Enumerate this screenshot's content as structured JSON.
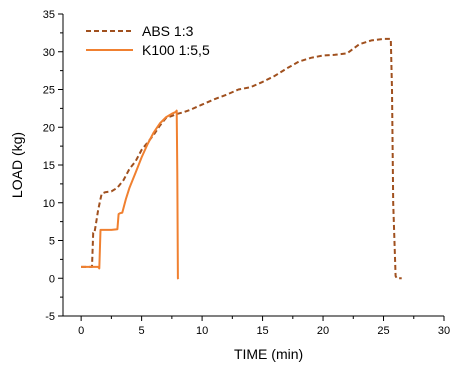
{
  "chart_data": {
    "type": "line",
    "title": "",
    "xlabel": "TIME (min)",
    "ylabel": "LOAD (kg)",
    "xlim": [
      -1.5,
      30
    ],
    "ylim": [
      -5,
      35
    ],
    "xticks": [
      0,
      5,
      10,
      15,
      20,
      25,
      30
    ],
    "yticks": [
      -5,
      0,
      5,
      10,
      15,
      20,
      25,
      30,
      35
    ],
    "grid": false,
    "legend_position": "top-left",
    "series": [
      {
        "name": "ABS 1:3",
        "color": "#a0501e",
        "style": "dashed",
        "x": [
          0,
          0.9,
          1.0,
          1.1,
          1.2,
          1.4,
          1.6,
          1.7,
          2.0,
          2.5,
          3.0,
          3.5,
          4.0,
          4.5,
          5.0,
          5.5,
          6.0,
          6.5,
          7.0,
          7.5,
          8.0,
          8.5,
          9.0,
          10.0,
          11.0,
          12.0,
          13.0,
          14.0,
          15.0,
          16.0,
          17.0,
          18.0,
          19.0,
          20.0,
          21.0,
          22.0,
          23.0,
          24.0,
          25.0,
          25.6,
          25.7,
          25.8,
          26.0,
          26.1,
          26.5
        ],
        "y": [
          1.5,
          1.5,
          6.0,
          6.0,
          7.0,
          9.0,
          10.5,
          11.2,
          11.4,
          11.5,
          12.0,
          13.0,
          14.5,
          15.5,
          17.0,
          18.0,
          19.0,
          20.2,
          21.2,
          21.5,
          21.8,
          22.0,
          22.3,
          23.0,
          23.7,
          24.3,
          25.0,
          25.3,
          26.0,
          26.8,
          27.8,
          28.7,
          29.2,
          29.5,
          29.6,
          29.8,
          31.0,
          31.5,
          31.7,
          31.7,
          25.0,
          10.0,
          0.3,
          0.0,
          0.0
        ]
      },
      {
        "name": "K100 1:5,5",
        "color": "#f08030",
        "style": "solid",
        "x": [
          0,
          1.4,
          1.5,
          1.6,
          2.0,
          2.5,
          3.0,
          3.1,
          3.2,
          3.4,
          3.7,
          4.0,
          4.5,
          5.0,
          5.5,
          6.0,
          6.5,
          7.0,
          7.5,
          7.8,
          7.9,
          7.95,
          8.0,
          8.05
        ],
        "y": [
          1.5,
          1.5,
          1.3,
          6.4,
          6.4,
          6.4,
          6.5,
          8.5,
          8.6,
          8.7,
          10.5,
          12.0,
          14.0,
          16.0,
          17.8,
          19.3,
          20.5,
          21.3,
          21.8,
          22.0,
          22.2,
          14.0,
          0.0,
          -0.1
        ]
      }
    ]
  }
}
